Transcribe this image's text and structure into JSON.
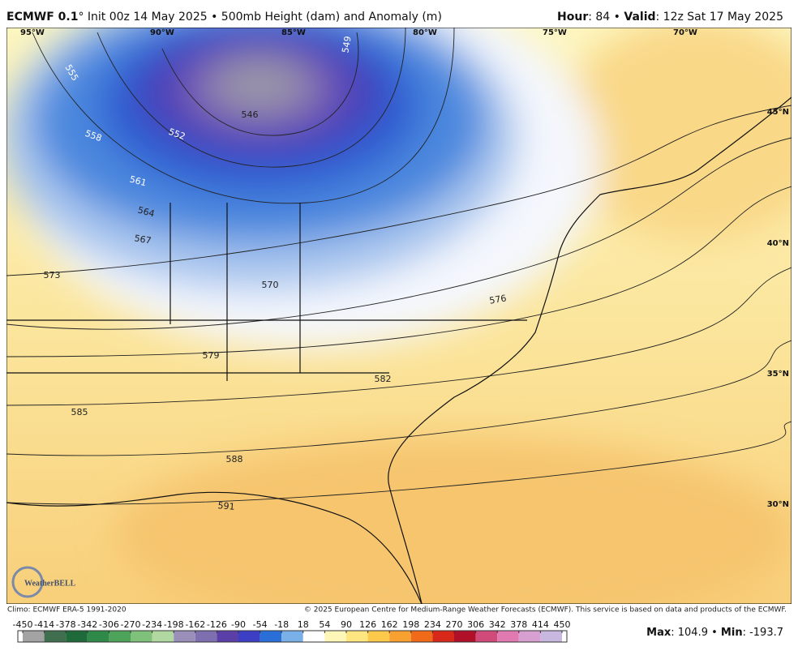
{
  "header": {
    "left_parts": [
      "ECMWF 0.1",
      "° Init 00z 14 May 2025 • 500mb Height (dam) and Anomaly (m)"
    ],
    "right_parts": [
      "Hour",
      ": 84 • ",
      "Valid",
      ": 12z Sat 17 May 2025"
    ]
  },
  "map": {
    "longitude_labels": [
      "95°W",
      "90°W",
      "85°W",
      "80°W",
      "75°W",
      "70°W"
    ],
    "latitude_labels": [
      "45°N",
      "40°N",
      "35°N",
      "30°N"
    ],
    "contour_labels": [
      "546",
      "549",
      "552",
      "555",
      "558",
      "561",
      "564",
      "567",
      "570",
      "573",
      "576",
      "579",
      "582",
      "585",
      "588",
      "591"
    ],
    "logo": "WeatherBELL"
  },
  "footer": {
    "climo": "Climo: ECMWF ERA-5 1991-2020",
    "copyright": "© 2025 European Centre for Medium-Range Weather Forecasts (ECMWF). This service is based on data and products of the ECMWF.",
    "stats_parts": [
      "Max",
      ": 104.9 • ",
      "Min",
      ": -193.7"
    ]
  },
  "colorbar": {
    "ticks": [
      -450,
      -414,
      -378,
      -342,
      -306,
      -270,
      -234,
      -198,
      -162,
      -126,
      -90,
      -54,
      -18,
      18,
      54,
      90,
      126,
      162,
      198,
      234,
      270,
      306,
      342,
      378,
      414,
      450
    ],
    "colors": [
      "#a3a3a3",
      "#3f6f4f",
      "#1f6a3a",
      "#2f8a4a",
      "#4ea35a",
      "#7fc07a",
      "#b0d8a0",
      "#9a8fb8",
      "#7d6fb0",
      "#5b3fa8",
      "#3c3ec4",
      "#2a6fd8",
      "#7ab0e8",
      "#ffffff",
      "#fff7b8",
      "#ffe680",
      "#fcc94a",
      "#f8a030",
      "#f06a1a",
      "#d8281a",
      "#b01028",
      "#d04a7a",
      "#e07ab0",
      "#d8a0d0",
      "#c8b8e0"
    ]
  }
}
